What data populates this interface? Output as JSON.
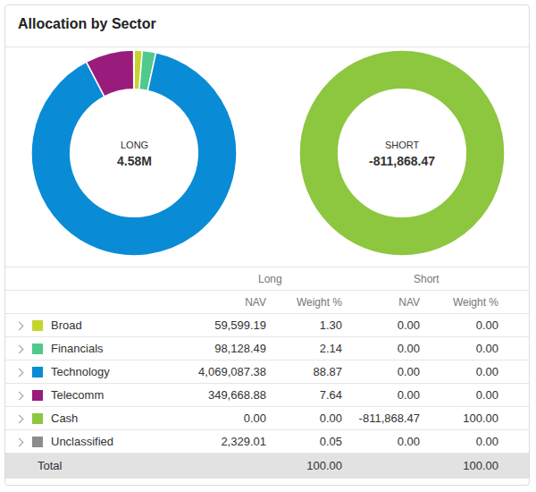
{
  "title": "Allocation by Sector",
  "chart_data": [
    {
      "type": "donut",
      "categories": [
        "Broad",
        "Financials",
        "Technology",
        "Telecomm",
        "Unclassified"
      ],
      "values": [
        1.3,
        2.14,
        88.87,
        7.64,
        0.05
      ],
      "colors": [
        "#c5d52f",
        "#4fc98c",
        "#0a8bd6",
        "#991c7c",
        "#8c8c8c"
      ],
      "annotations": [
        "LONG",
        "4.58M"
      ]
    },
    {
      "type": "donut",
      "categories": [
        "Cash"
      ],
      "values": [
        100.0
      ],
      "colors": [
        "#8dc63f"
      ],
      "annotations": [
        "SHORT",
        "-811,868.47"
      ]
    }
  ],
  "table": {
    "header": {
      "groups": [
        "Long",
        "Short"
      ],
      "columns": [
        "NAV",
        "Weight %",
        "NAV",
        "Weight %"
      ]
    },
    "rows": [
      {
        "label": "Broad",
        "color": "#c5d52f",
        "cells": [
          "59,599.19",
          "1.30",
          "0.00",
          "0.00"
        ]
      },
      {
        "label": "Financials",
        "color": "#4fc98c",
        "cells": [
          "98,128.49",
          "2.14",
          "0.00",
          "0.00"
        ]
      },
      {
        "label": "Technology",
        "color": "#0a8bd6",
        "cells": [
          "4,069,087.38",
          "88.87",
          "0.00",
          "0.00"
        ]
      },
      {
        "label": "Telecomm",
        "color": "#991c7c",
        "cells": [
          "349,668.88",
          "7.64",
          "0.00",
          "0.00"
        ]
      },
      {
        "label": "Cash",
        "color": "#8dc63f",
        "cells": [
          "0.00",
          "0.00",
          "-811,868.47",
          "100.00"
        ]
      },
      {
        "label": "Unclassified",
        "color": "#8c8c8c",
        "cells": [
          "2,329.01",
          "0.05",
          "0.00",
          "0.00"
        ]
      }
    ],
    "total": {
      "label": "Total",
      "cells": [
        null,
        "100.00",
        null,
        "100.00"
      ]
    }
  }
}
